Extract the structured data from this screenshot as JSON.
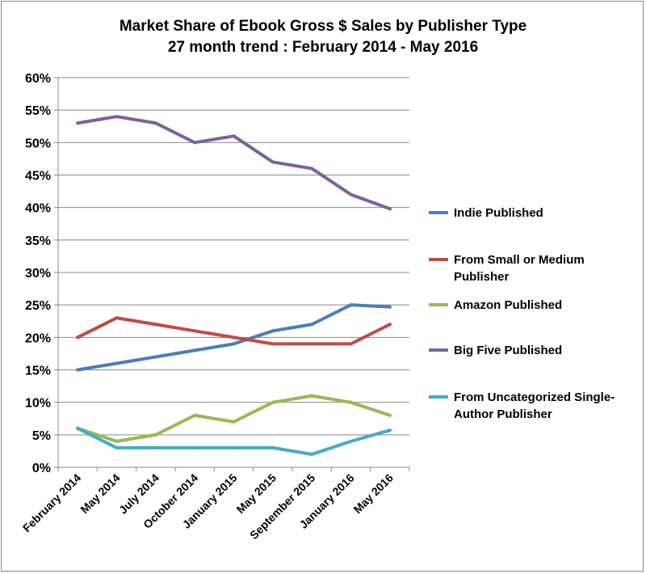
{
  "chart_data": {
    "type": "line",
    "title": "Market Share of Ebook Gross $ Sales by Publisher Type",
    "subtitle": "27 month trend : February 2014 - May 2016",
    "xlabel": "",
    "ylabel": "",
    "ylim": [
      0,
      60
    ],
    "yticks": [
      "0%",
      "5%",
      "10%",
      "15%",
      "20%",
      "25%",
      "30%",
      "35%",
      "40%",
      "45%",
      "50%",
      "55%",
      "60%"
    ],
    "grid": true,
    "legend_position": "right",
    "categories": [
      "February 2014",
      "May 2014",
      "July 2014",
      "October 2014",
      "January 2015",
      "May 2015",
      "September 2015",
      "January 2016",
      "May 2016"
    ],
    "series": [
      {
        "name": "Indie Published",
        "color": "#4a7ebb",
        "values": [
          15,
          16,
          17,
          18,
          19,
          21,
          22,
          25,
          24.7
        ]
      },
      {
        "name": "From Small or Medium Publisher",
        "color": "#be4b48",
        "values": [
          20,
          23,
          22,
          21,
          20,
          19,
          19,
          19,
          22
        ]
      },
      {
        "name": "Amazon Published",
        "color": "#98b954",
        "values": [
          6,
          4,
          5,
          8,
          7,
          10,
          11,
          10,
          8
        ]
      },
      {
        "name": "Big Five Published",
        "color": "#7d60a0",
        "values": [
          53,
          54,
          53,
          50,
          51,
          47,
          46,
          42,
          39.8
        ]
      },
      {
        "name": "From Uncategorized Single-Author Publisher",
        "color": "#46aac5",
        "values": [
          6,
          3,
          3,
          3,
          3,
          3,
          2,
          4,
          5.7
        ]
      }
    ],
    "legend_lines": [
      [
        "Indie Published"
      ],
      [
        "From Small or Medium",
        "Publisher"
      ],
      [
        "Amazon Published"
      ],
      [
        "Big Five Published"
      ],
      [
        "From Uncategorized Single-",
        "Author Publisher"
      ]
    ]
  }
}
